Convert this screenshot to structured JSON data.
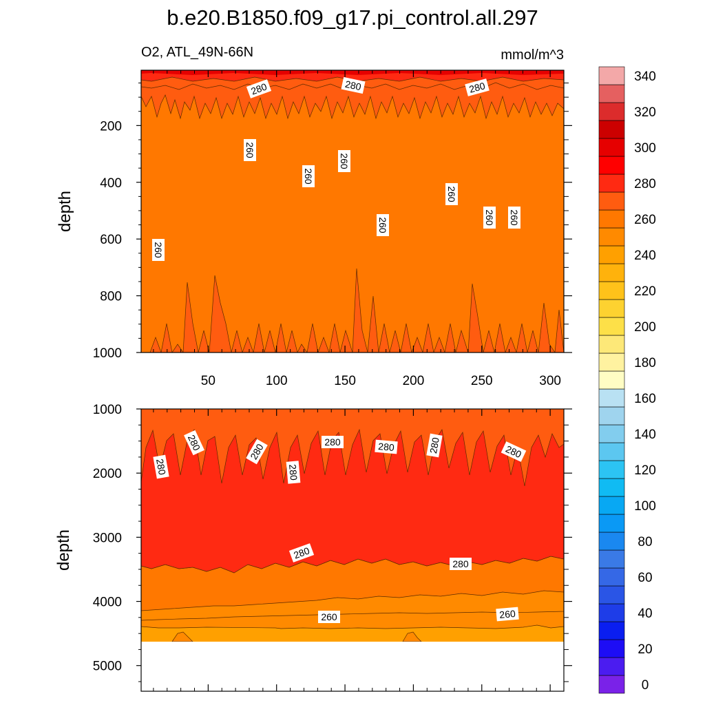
{
  "figure": {
    "title": "b.e20.B1850.f09_g17.pi_control.all.297",
    "left_string": "O2, ATL_49N-66N",
    "right_string": "mmol/m^3"
  },
  "chart_data": [
    {
      "type": "heatmap",
      "panel": "upper",
      "variable": "O2",
      "region": "ATL_49N-66N",
      "units": "mmol/m^3",
      "xlabel": "",
      "ylabel": "depth",
      "xlim": [
        1,
        310
      ],
      "ylim": [
        1000,
        5
      ],
      "y_reversed": true,
      "xticks": [
        50,
        100,
        150,
        200,
        250,
        300
      ],
      "yticks": [
        200,
        400,
        600,
        800,
        1000
      ],
      "layers": [
        {
          "depth_range": [
            5,
            25
          ],
          "value_range": [
            300,
            310
          ]
        },
        {
          "depth_range": [
            25,
            40
          ],
          "value_range": [
            290,
            300
          ]
        },
        {
          "depth_range": [
            40,
            120
          ],
          "value_range": [
            280,
            290
          ]
        },
        {
          "depth_range": [
            120,
            900
          ],
          "value_range": [
            260,
            270
          ]
        },
        {
          "depth_range": [
            900,
            1000
          ],
          "value_range": [
            270,
            280
          ]
        }
      ],
      "contour_labels": [
        "280",
        "280",
        "280",
        "260",
        "260",
        "260",
        "260",
        "260",
        "260",
        "260",
        "260"
      ]
    },
    {
      "type": "heatmap",
      "panel": "lower",
      "variable": "O2",
      "region": "ATL_49N-66N",
      "units": "mmol/m^3",
      "xlabel": "",
      "ylabel": "depth",
      "xlim": [
        1,
        310
      ],
      "ylim": [
        5400,
        1000
      ],
      "y_reversed": true,
      "yticks": [
        1000,
        2000,
        3000,
        4000,
        5000
      ],
      "layers": [
        {
          "depth_range": [
            1000,
            1600
          ],
          "value_range": [
            270,
            280
          ]
        },
        {
          "depth_range": [
            1600,
            3450
          ],
          "value_range": [
            280,
            290
          ]
        },
        {
          "depth_range": [
            3450,
            3900
          ],
          "value_range": [
            270,
            280
          ]
        },
        {
          "depth_range": [
            3900,
            4200
          ],
          "value_range": [
            260,
            270
          ]
        },
        {
          "depth_range": [
            4200,
            4600
          ],
          "value_range": [
            250,
            260
          ]
        }
      ],
      "missing_below_depth": 4600,
      "contour_labels": [
        "280",
        "280",
        "280",
        "280",
        "280",
        "280",
        "280",
        "280",
        "280",
        "280",
        "260",
        "260"
      ]
    }
  ],
  "colorbar": {
    "labels": [
      "0",
      "20",
      "40",
      "60",
      "80",
      "100",
      "120",
      "140",
      "160",
      "180",
      "200",
      "220",
      "240",
      "260",
      "280",
      "300",
      "320",
      "340"
    ],
    "colors": [
      "#7a22e8",
      "#4b1cf0",
      "#1d0df5",
      "#0a1ef0",
      "#1e3de8",
      "#2a55e6",
      "#3568e6",
      "#3a7ae6",
      "#1a88f0",
      "#0a99f5",
      "#08a8f3",
      "#10bbf3",
      "#2cc4f3",
      "#5cc7f0",
      "#82cdee",
      "#9fd4ee",
      "#b9e1f3",
      "#fffdc4",
      "#fff2a0",
      "#fde878",
      "#fde048",
      "#fdd230",
      "#ffc21a",
      "#ffb20c",
      "#ffa000",
      "#ff8a00",
      "#ff7800",
      "#ff5c10",
      "#ff2a12",
      "#ff0000",
      "#e60000",
      "#cc0000",
      "#dc2c2c",
      "#e56060",
      "#f3a8a8"
    ]
  }
}
